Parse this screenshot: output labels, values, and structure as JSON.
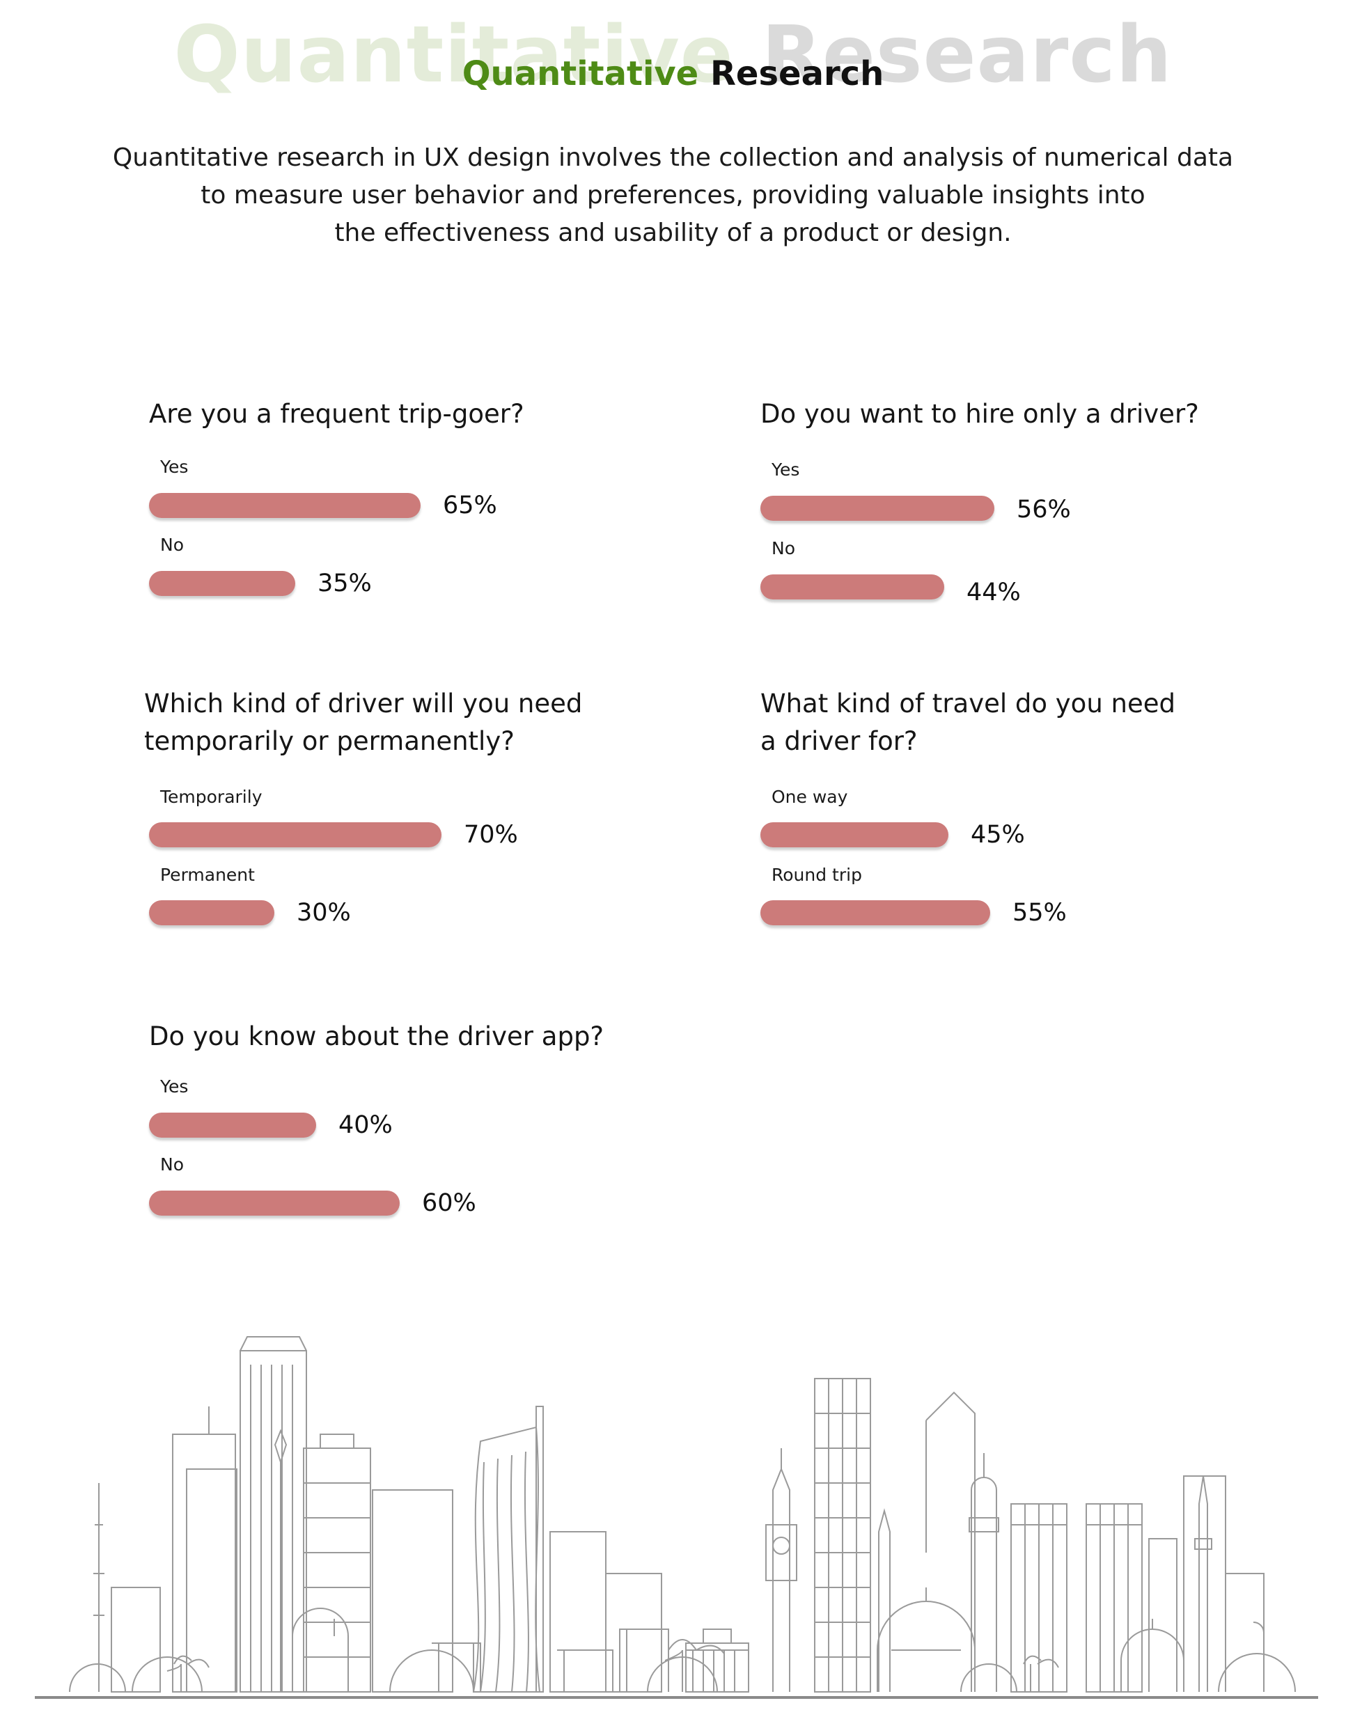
{
  "header": {
    "bg_word1": "Quantitative",
    "bg_word2": "Research",
    "title_word1": "Quantitative",
    "title_word2": "Research"
  },
  "intro": {
    "line1": "Quantitative research in UX design involves the collection and analysis of numerical data",
    "line2": "to measure user behavior and preferences, providing valuable insights into",
    "line3": "the effectiveness and usability of a product or design."
  },
  "colors": {
    "bar": "#cc7b7a",
    "title_green": "#4e8b16",
    "watermark_green": "#e4ecd9",
    "watermark_gray": "#dadada"
  },
  "chart_data": [
    {
      "type": "bar",
      "title": "Are you a frequent trip-goer?",
      "categories": [
        "Yes",
        "No"
      ],
      "values": [
        65,
        35
      ],
      "labels": [
        "65%",
        "35%"
      ]
    },
    {
      "type": "bar",
      "title": "Do you want to hire only a driver?",
      "categories": [
        "Yes",
        "No"
      ],
      "values": [
        56,
        44
      ],
      "labels": [
        "56%",
        "44%"
      ]
    },
    {
      "type": "bar",
      "title_line1": "Which kind of driver will you need",
      "title_line2": "temporarily or permanently?",
      "categories": [
        "Temporarily",
        "Permanent"
      ],
      "values": [
        70,
        30
      ],
      "labels": [
        "70%",
        "30%"
      ]
    },
    {
      "type": "bar",
      "title_line1": "What kind of travel do you need",
      "title_line2": " a driver for?",
      "categories": [
        "One way",
        "Round trip"
      ],
      "values": [
        45,
        55
      ],
      "labels": [
        "45%",
        "55%"
      ]
    },
    {
      "type": "bar",
      "title": "Do you know about the driver app?",
      "categories": [
        "Yes",
        "No"
      ],
      "values": [
        40,
        60
      ],
      "labels": [
        "40%",
        "60%"
      ]
    }
  ]
}
